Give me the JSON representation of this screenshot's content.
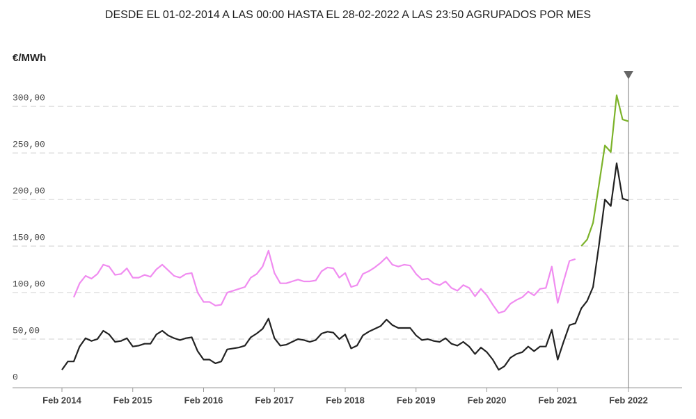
{
  "chart_data": {
    "type": "line",
    "title": "DESDE EL 01-02-2014 A LAS 00:00 HASTA EL 28-02-2022 A LAS 23:50 AGRUPADOS POR MES",
    "y_label": "€/MWh",
    "categories": [
      "Feb 2014",
      null,
      null,
      null,
      null,
      null,
      null,
      null,
      null,
      null,
      null,
      null,
      "Feb 2015",
      null,
      null,
      null,
      null,
      null,
      null,
      null,
      null,
      null,
      null,
      null,
      "Feb 2016",
      null,
      null,
      null,
      null,
      null,
      null,
      null,
      null,
      null,
      null,
      null,
      "Feb 2017",
      null,
      null,
      null,
      null,
      null,
      null,
      null,
      null,
      null,
      null,
      null,
      "Feb 2018",
      null,
      null,
      null,
      null,
      null,
      null,
      null,
      null,
      null,
      null,
      null,
      "Feb 2019",
      null,
      null,
      null,
      null,
      null,
      null,
      null,
      null,
      null,
      null,
      null,
      "Feb 2020",
      null,
      null,
      null,
      null,
      null,
      null,
      null,
      null,
      null,
      null,
      null,
      "Feb 2021",
      null,
      null,
      null,
      null,
      null,
      null,
      null,
      null,
      null,
      null,
      null,
      "Feb 2022"
    ],
    "series": [
      {
        "color": "#222222",
        "values": [
          17,
          26,
          26,
          42,
          51,
          48,
          50,
          59,
          55,
          47,
          48,
          51,
          42,
          43,
          45,
          45,
          55,
          59,
          54,
          51,
          49,
          51,
          52,
          37,
          28,
          28,
          24,
          26,
          39,
          40,
          41,
          43,
          52,
          56,
          61,
          72,
          51,
          43,
          44,
          47,
          50,
          49,
          47,
          49,
          56,
          58,
          57,
          50,
          55,
          40,
          43,
          54,
          58,
          61,
          64,
          71,
          65,
          62,
          62,
          62,
          54,
          49,
          50,
          48,
          47,
          51,
          45,
          43,
          47,
          42,
          34,
          41,
          36,
          28,
          17,
          21,
          30,
          34,
          36,
          42,
          37,
          42,
          42,
          60,
          28,
          47,
          65,
          67,
          83,
          91,
          106,
          151,
          200,
          193,
          239,
          201,
          199
        ]
      },
      {
        "color": "#f08cf0",
        "values": [
          null,
          null,
          95,
          110,
          118,
          115,
          120,
          130,
          128,
          119,
          120,
          126,
          116,
          116,
          119,
          117,
          125,
          130,
          124,
          118,
          116,
          120,
          121,
          100,
          90,
          90,
          86,
          87,
          100,
          102,
          104,
          106,
          116,
          120,
          128,
          145,
          121,
          110,
          110,
          112,
          114,
          112,
          112,
          113,
          123,
          127,
          126,
          116,
          121,
          106,
          108,
          120,
          123,
          127,
          132,
          138,
          130,
          128,
          130,
          129,
          120,
          114,
          115,
          110,
          108,
          112,
          105,
          102,
          108,
          105,
          96,
          104,
          97,
          87,
          78,
          80,
          88,
          92,
          95,
          101,
          97,
          104,
          105,
          128,
          89,
          112,
          134,
          136,
          null,
          null,
          null,
          null,
          null,
          null,
          null,
          null,
          null
        ]
      },
      {
        "color": "#7cb32a",
        "values": [
          null,
          null,
          null,
          null,
          null,
          null,
          null,
          null,
          null,
          null,
          null,
          null,
          null,
          null,
          null,
          null,
          null,
          null,
          null,
          null,
          null,
          null,
          null,
          null,
          null,
          null,
          null,
          null,
          null,
          null,
          null,
          null,
          null,
          null,
          null,
          null,
          null,
          null,
          null,
          null,
          null,
          null,
          null,
          null,
          null,
          null,
          null,
          null,
          null,
          null,
          null,
          null,
          null,
          null,
          null,
          null,
          null,
          null,
          null,
          null,
          null,
          null,
          null,
          null,
          null,
          null,
          null,
          null,
          null,
          null,
          null,
          null,
          null,
          null,
          null,
          null,
          null,
          null,
          null,
          null,
          null,
          null,
          null,
          null,
          null,
          null,
          null,
          null,
          150,
          157,
          175,
          216,
          258,
          251,
          312,
          286,
          284
        ]
      }
    ],
    "ylim": [
      0,
      330
    ],
    "yticks": [
      0,
      {
        "value": 50,
        "label": "50,00"
      },
      {
        "value": 100,
        "label": "100,00"
      },
      {
        "value": 150,
        "label": "150,00"
      },
      {
        "value": 200,
        "label": "200,00"
      },
      {
        "value": 250,
        "label": "250,00"
      },
      {
        "value": 300,
        "label": "300,00"
      }
    ],
    "grid": true
  }
}
